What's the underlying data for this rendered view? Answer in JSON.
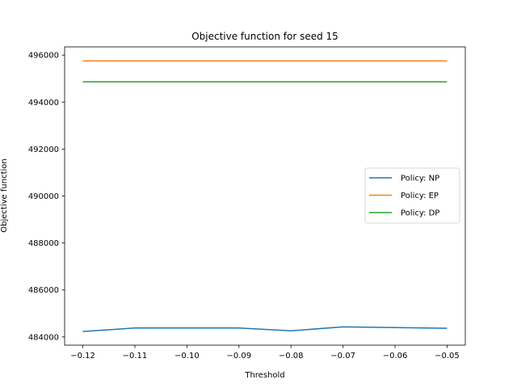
{
  "chart_data": {
    "type": "line",
    "title": "Objective function for seed 15",
    "xlabel": "Threshold",
    "ylabel": "Objective function",
    "x": [
      -0.12,
      -0.11,
      -0.1,
      -0.09,
      -0.08,
      -0.07,
      -0.06,
      -0.05
    ],
    "xticks": [
      -0.12,
      -0.11,
      -0.1,
      -0.09,
      -0.08,
      -0.07,
      -0.06,
      -0.05
    ],
    "xtick_labels": [
      "−0.12",
      "−0.11",
      "−0.10",
      "−0.09",
      "−0.08",
      "−0.07",
      "−0.06",
      "−0.05"
    ],
    "yticks": [
      484000,
      486000,
      488000,
      490000,
      492000,
      494000,
      496000
    ],
    "ytick_labels": [
      "484000",
      "486000",
      "488000",
      "490000",
      "492000",
      "494000",
      "496000"
    ],
    "xlim": [
      -0.1235,
      -0.0465
    ],
    "ylim": [
      483650,
      496350
    ],
    "grid": false,
    "legend_position": "center-right",
    "series": [
      {
        "name": "Policy: NP",
        "color": "#1f77b4",
        "values": [
          484230,
          484380,
          484380,
          484380,
          484260,
          484430,
          484400,
          484370
        ]
      },
      {
        "name": "Policy: EP",
        "color": "#ff7f0e",
        "values": [
          495750,
          495750,
          495750,
          495750,
          495750,
          495750,
          495750,
          495750
        ]
      },
      {
        "name": "Policy: DP",
        "color": "#2ca02c",
        "values": [
          494860,
          494860,
          494860,
          494860,
          494860,
          494860,
          494860,
          494860
        ]
      }
    ]
  }
}
